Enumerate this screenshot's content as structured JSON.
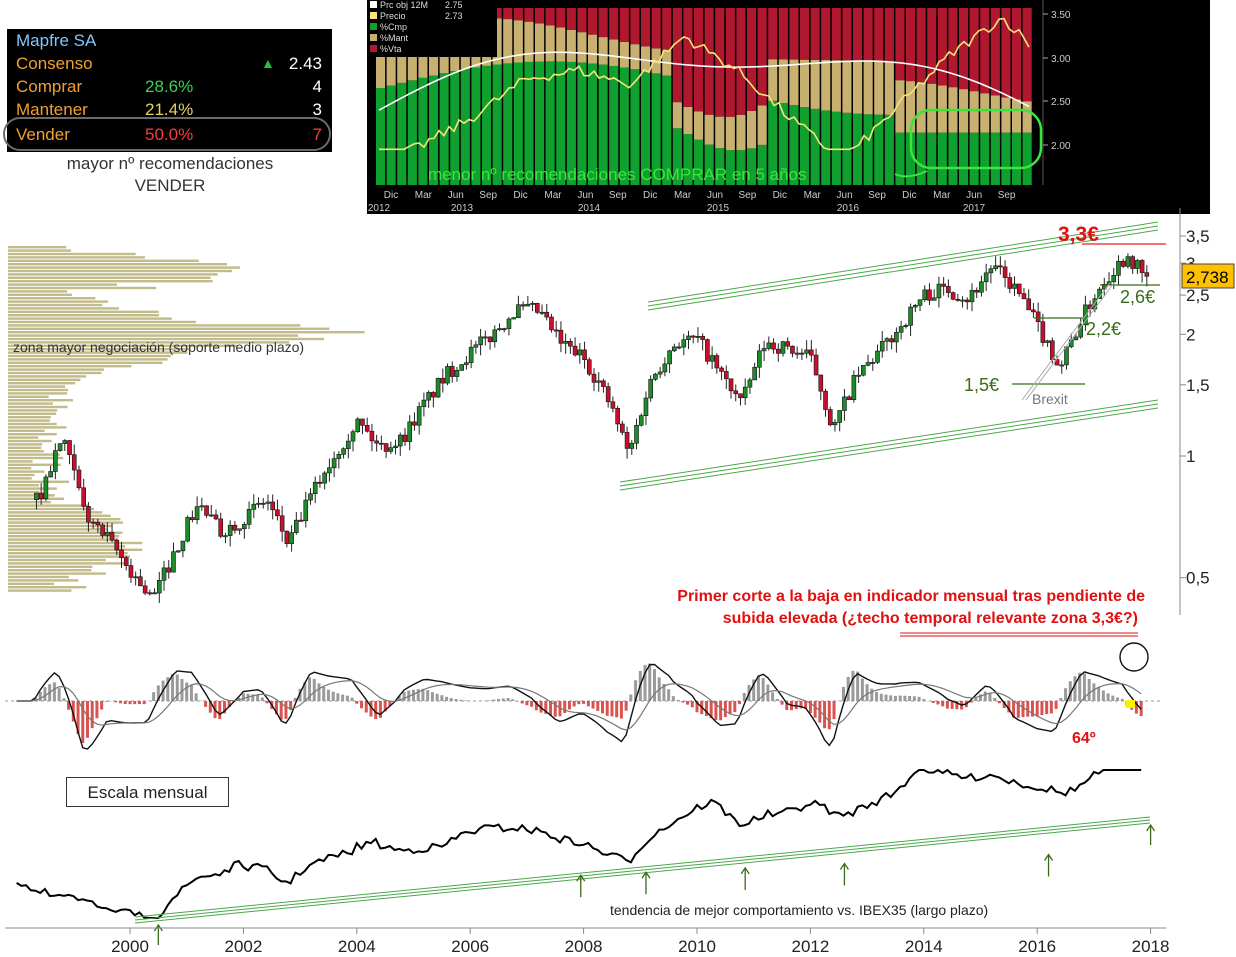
{
  "consensus_panel": {
    "ticker": "Mapfre SA",
    "rows": [
      {
        "label": "Consenso",
        "pct": "",
        "value": "2.43",
        "arrow": "▲"
      },
      {
        "label": "Comprar",
        "pct": "28.6%",
        "value": "4",
        "pct_color": "#39d353"
      },
      {
        "label": "Mantener",
        "pct": "21.4%",
        "value": "3",
        "pct_color": "#e8d060"
      },
      {
        "label": "Vender",
        "pct": "50.0%",
        "value": "7",
        "pct_color": "#ff3a3a"
      }
    ],
    "note_line1": "mayor nº recomendaciones",
    "note_line2": "VENDER"
  },
  "analyst_chart": {
    "legend": [
      {
        "label": "Prc obj 12M",
        "value": "2.75",
        "color": "#ffffff"
      },
      {
        "label": "Precio",
        "value": "2.73",
        "color": "#f5e57a"
      },
      {
        "label": "%Cmp",
        "value": "",
        "color": "#10a030"
      },
      {
        "label": "%Mant",
        "value": "",
        "color": "#c8b070"
      },
      {
        "label": "%Vta",
        "value": "",
        "color": "#b01830"
      }
    ],
    "annotation": "menor nº recomendaciones COMPRAR en 5 años",
    "y_ticks": [
      "3.50",
      "3.00",
      "2.50",
      "2.00"
    ],
    "month_labels": [
      "Dic",
      "Mar",
      "Jun",
      "Sep",
      "Dic",
      "Mar",
      "Jun",
      "Sep",
      "Dic",
      "Mar",
      "Jun",
      "Sep",
      "Dic",
      "Mar",
      "Jun",
      "Sep",
      "Dic",
      "Mar",
      "Jun",
      "Sep"
    ],
    "year_labels": [
      "2012",
      "2013",
      "2014",
      "2015",
      "2016",
      "2017"
    ]
  },
  "chart_data": {
    "type": "line",
    "price_label": "2,738",
    "y_ticks": [
      "3,5",
      "3",
      "2,5",
      "2",
      "1,5",
      "1",
      "0,5"
    ],
    "x_ticks": [
      "2000",
      "2002",
      "2004",
      "2006",
      "2008",
      "2010",
      "2012",
      "2014",
      "2016",
      "2018"
    ],
    "price_series": {
      "x": [
        1998.4,
        1998.8,
        1999.2,
        1999.6,
        2000.0,
        2000.4,
        2000.8,
        2001.2,
        2001.6,
        2002.0,
        2002.4,
        2002.8,
        2003.2,
        2003.6,
        2004.0,
        2004.4,
        2004.8,
        2005.2,
        2005.6,
        2006.0,
        2006.4,
        2006.8,
        2007.2,
        2007.6,
        2008.0,
        2008.4,
        2008.8,
        2009.2,
        2009.6,
        2010.0,
        2010.4,
        2010.8,
        2011.2,
        2011.6,
        2012.0,
        2012.4,
        2012.8,
        2013.2,
        2013.6,
        2014.0,
        2014.4,
        2014.8,
        2015.2,
        2015.6,
        2016.0,
        2016.4,
        2016.8,
        2017.2,
        2017.6,
        2017.9
      ],
      "y": [
        0.78,
        1.1,
        0.72,
        0.62,
        0.52,
        0.44,
        0.58,
        0.76,
        0.65,
        0.7,
        0.78,
        0.6,
        0.8,
        1.0,
        1.22,
        1.05,
        1.1,
        1.35,
        1.6,
        1.8,
        2.0,
        2.3,
        2.28,
        1.9,
        1.75,
        1.4,
        1.0,
        1.55,
        1.9,
        1.95,
        1.6,
        1.35,
        1.9,
        1.85,
        1.75,
        1.15,
        1.55,
        1.8,
        2.1,
        2.5,
        2.6,
        2.45,
        2.95,
        2.6,
        2.1,
        1.65,
        2.2,
        2.75,
        3.15,
        2.74
      ]
    },
    "annotations": [
      {
        "text": "3,3€",
        "value": 3.3
      },
      {
        "text": "2,6€",
        "value": 2.6
      },
      {
        "text": "2,2€",
        "value": 2.2
      },
      {
        "text": "1,5€",
        "value": 1.5
      },
      {
        "text": "Brexit"
      },
      {
        "text": "zona mayor negociación (soporte medio plazo)"
      },
      {
        "text": "Primer corte a la baja en indicador mensual tras pendiente de subida elevada (¿techo temporal relevante zona 3,3€?)"
      },
      {
        "text": "64º"
      },
      {
        "text": "tendencia de mejor comportamiento vs. IBEX35 (largo plazo)"
      }
    ],
    "scale_label": "Escala mensual",
    "colors": {
      "up": "#1f8a2a",
      "down": "#c8102e",
      "channel": "#4aa84a",
      "volume_profile": "#c2bb8a",
      "price_tag": "#ffc000"
    }
  },
  "text": {
    "zona": "zona mayor negociación (soporte medio plazo)",
    "primer1": "Primer corte a la baja en indicador mensual tras pendiente de",
    "primer2": "subida elevada (¿techo temporal relevante zona 3,3€?)",
    "grado": "64º",
    "tendencia": "tendencia de mejor comportamiento vs. IBEX35 (largo plazo)",
    "escala": "Escala mensual",
    "l33": "3,3€",
    "l26": "2,6€",
    "l22": "2,2€",
    "l15": "1,5€",
    "brexit": "Brexit"
  }
}
